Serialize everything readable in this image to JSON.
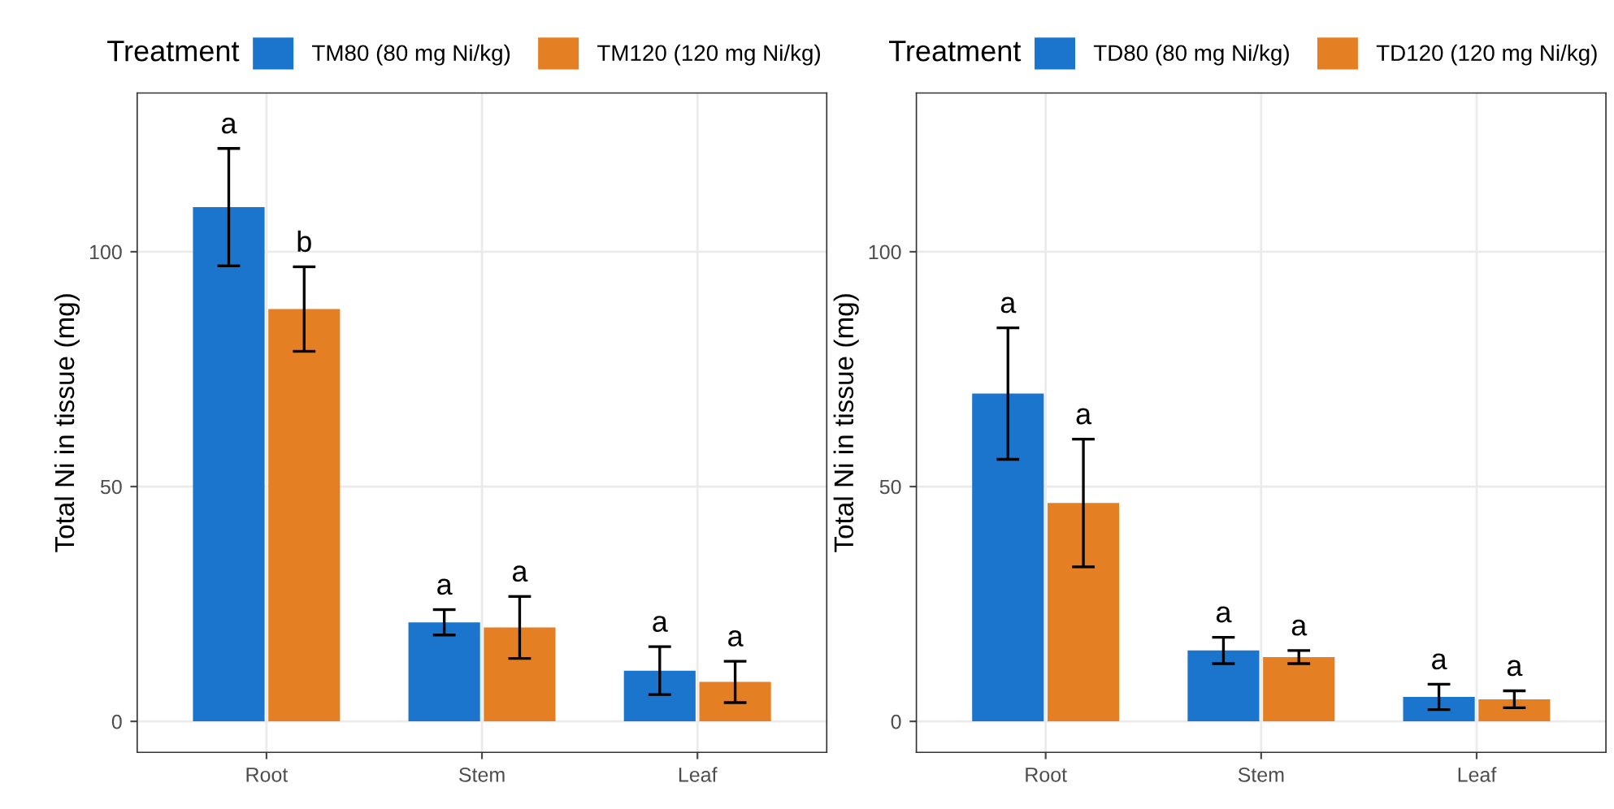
{
  "chart_data": [
    {
      "type": "bar",
      "ylabel": "Total Ni in tissue (mg)",
      "legend_title": "Treatment",
      "legend": "top",
      "grid": true,
      "categories": [
        "Root",
        "Stem",
        "Leaf"
      ],
      "ylim": [
        -6.6,
        133.8
      ],
      "yticks": [
        0,
        50,
        100
      ],
      "series": [
        {
          "name": "TM80 (80 mg Ni/kg)",
          "color": "#1b75cc",
          "values": [
            109.5,
            21.1,
            10.8
          ],
          "errors": [
            12.5,
            2.7,
            5.1
          ]
        },
        {
          "name": "TM120 (120 mg Ni/kg)",
          "color": "#e57f24",
          "values": [
            87.8,
            20,
            8.4
          ],
          "errors": [
            9,
            6.6,
            4.4
          ]
        }
      ],
      "annotations": [
        "a",
        "b",
        "a",
        "a",
        "a",
        "a"
      ]
    },
    {
      "type": "bar",
      "ylabel": "Total Ni in tissue (mg)",
      "legend_title": "Treatment",
      "legend": "top",
      "grid": true,
      "categories": [
        "Root",
        "Stem",
        "Leaf"
      ],
      "ylim": [
        -6.6,
        133.8
      ],
      "yticks": [
        0,
        50,
        100
      ],
      "series": [
        {
          "name": "TD80 (80 mg Ni/kg)",
          "color": "#1b75cc",
          "values": [
            69.8,
            15.1,
            5.2
          ],
          "errors": [
            14,
            2.8,
            2.7
          ]
        },
        {
          "name": "TD120 (120 mg Ni/kg)",
          "color": "#e57f24",
          "values": [
            46.5,
            13.7,
            4.7
          ],
          "errors": [
            13.6,
            1.4,
            1.8
          ]
        }
      ],
      "annotations": [
        "a",
        "a",
        "a",
        "a",
        "a",
        "a"
      ]
    }
  ]
}
